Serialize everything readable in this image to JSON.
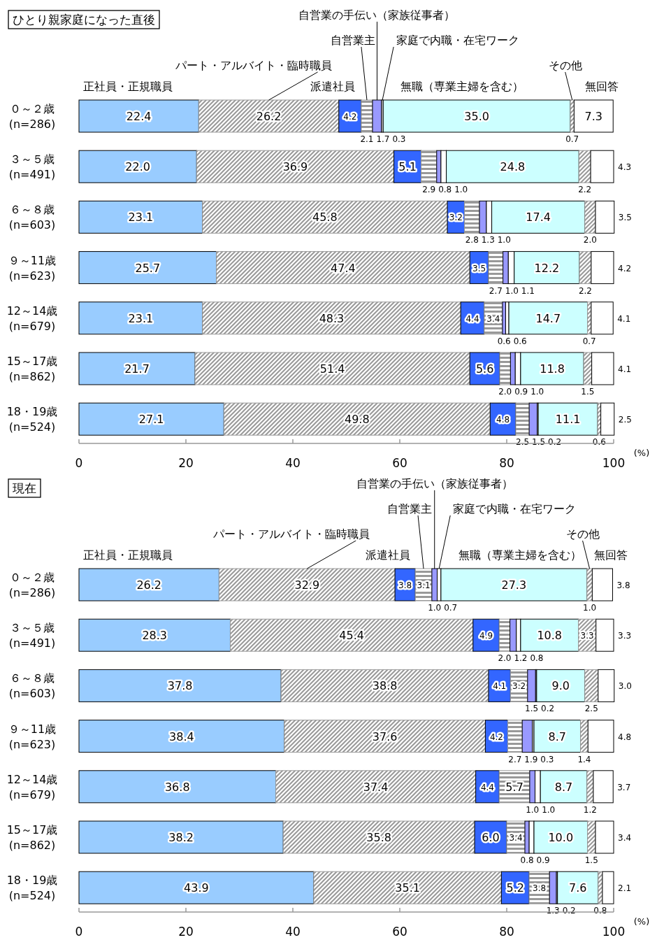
{
  "chart_data": [
    {
      "type": "bar",
      "orientation": "horizontal",
      "stacked": true,
      "title": "ひとり親家庭になった直後",
      "xlim": [
        0,
        100
      ],
      "xticks": [
        0,
        20,
        40,
        60,
        80,
        100
      ],
      "annotations": [
        "(%)"
      ],
      "categories": [
        "０～２歳\n(n=286)",
        "３～５歳\n(n=491)",
        "６～８歳\n(n=603)",
        "９～11歳\n(n=623)",
        "12～14歳\n(n=679)",
        "15～17歳\n(n=862)",
        "18・19歳\n(n=524)"
      ],
      "series": [
        {
          "name": "正社員・正規職員",
          "color": "#99ccff",
          "values": [
            22.4,
            22.0,
            23.1,
            25.7,
            23.1,
            21.7,
            27.1
          ],
          "value_labels": [
            "22.4",
            "22.0",
            "23.1",
            "25.7",
            "23.1",
            "21.7",
            "27.1"
          ]
        },
        {
          "name": "パート・アルバイト・臨時職員",
          "color": "#999999",
          "values": [
            26.2,
            36.9,
            45.8,
            47.4,
            48.3,
            51.4,
            49.8
          ],
          "value_labels": [
            "26.2",
            "36.9",
            "45.8",
            "47.4",
            "48.3",
            "51.4",
            "49.8"
          ]
        },
        {
          "name": "派遣社員",
          "color": "#3366ff",
          "values": [
            4.2,
            5.1,
            3.2,
            3.5,
            4.4,
            5.6,
            4.8
          ],
          "value_labels": [
            "4.2",
            "5.1",
            "3.2",
            "3.5",
            "4.4",
            "5.6",
            "4.8"
          ]
        },
        {
          "name": "自営業主",
          "color": "#999999",
          "values": [
            2.1,
            2.9,
            2.8,
            2.7,
            3.4,
            2.0,
            2.5
          ],
          "value_labels": [
            "2.1",
            "2.9",
            "2.8",
            "2.7",
            "3.4",
            "2.0",
            "2.5"
          ]
        },
        {
          "name": "自営業の手伝い（家族従事者）",
          "color": "#9999ff",
          "values": [
            1.7,
            0.8,
            1.3,
            1.0,
            0.6,
            0.9,
            1.5
          ],
          "value_labels": [
            "1.7",
            "0.8",
            "1.3",
            "1.0",
            "0.6",
            "0.9",
            "1.5"
          ]
        },
        {
          "name": "家庭で内職・在宅ワーク",
          "color": "#ffffff",
          "values": [
            0.3,
            1.0,
            1.0,
            1.1,
            0.6,
            1.0,
            0.2
          ],
          "value_labels": [
            "0.3",
            "1.0",
            "1.0",
            "1.1",
            "0.6",
            "1.0",
            "0.2"
          ]
        },
        {
          "name": "無職（専業主婦を含む）",
          "color": "#ccffff",
          "values": [
            35.0,
            24.8,
            17.4,
            12.2,
            14.7,
            11.8,
            11.1
          ],
          "value_labels": [
            "35.0",
            "24.8",
            "17.4",
            "12.2",
            "14.7",
            "11.8",
            "11.1"
          ]
        },
        {
          "name": "その他",
          "color": "#999999",
          "values": [
            0.7,
            2.2,
            2.0,
            2.2,
            0.7,
            1.5,
            0.6
          ],
          "value_labels": [
            "0.7",
            "2.2",
            "2.0",
            "2.2",
            "0.7",
            "1.5",
            "0.6"
          ]
        },
        {
          "name": "無回答",
          "color": "#ffffff",
          "values": [
            7.3,
            4.3,
            3.5,
            4.2,
            4.1,
            4.1,
            2.5
          ],
          "value_labels": [
            "7.3",
            "4.3",
            "3.5",
            "4.2",
            "4.1",
            "4.1",
            "2.5"
          ]
        }
      ]
    },
    {
      "type": "bar",
      "orientation": "horizontal",
      "stacked": true,
      "title": "現在",
      "xlim": [
        0,
        100
      ],
      "xticks": [
        0,
        20,
        40,
        60,
        80,
        100
      ],
      "annotations": [
        "(%)"
      ],
      "categories": [
        "０～２歳\n(n=286)",
        "３～５歳\n(n=491)",
        "６～８歳\n(n=603)",
        "９～11歳\n(n=623)",
        "12～14歳\n(n=679)",
        "15～17歳\n(n=862)",
        "18・19歳\n(n=524)"
      ],
      "series": [
        {
          "name": "正社員・正規職員",
          "color": "#99ccff",
          "values": [
            26.2,
            28.3,
            37.8,
            38.4,
            36.8,
            38.2,
            43.9
          ],
          "value_labels": [
            "26.2",
            "28.3",
            "37.8",
            "38.4",
            "36.8",
            "38.2",
            "43.9"
          ]
        },
        {
          "name": "パート・アルバイト・臨時職員",
          "color": "#999999",
          "values": [
            32.9,
            45.4,
            38.8,
            37.6,
            37.4,
            35.8,
            35.1
          ],
          "value_labels": [
            "32.9",
            "45.4",
            "38.8",
            "37.6",
            "37.4",
            "35.8",
            "35.1"
          ]
        },
        {
          "name": "派遣社員",
          "color": "#3366ff",
          "values": [
            3.8,
            4.9,
            4.1,
            4.2,
            4.4,
            6.0,
            5.2
          ],
          "value_labels": [
            "3.8",
            "4.9",
            "4.1",
            "4.2",
            "4.4",
            "6.0",
            "5.2"
          ]
        },
        {
          "name": "自営業主",
          "color": "#999999",
          "values": [
            3.1,
            2.0,
            3.2,
            2.7,
            5.7,
            3.4,
            3.8
          ],
          "value_labels": [
            "3.1",
            "2.0",
            "3.2",
            "2.7",
            "5.7",
            "3.4",
            "3.8"
          ]
        },
        {
          "name": "自営業の手伝い（家族従事者）",
          "color": "#9999ff",
          "values": [
            1.0,
            1.2,
            1.5,
            1.9,
            1.0,
            0.8,
            1.3
          ],
          "value_labels": [
            "1.0",
            "1.2",
            "1.5",
            "1.9",
            "1.0",
            "0.8",
            "1.3"
          ]
        },
        {
          "name": "家庭で内職・在宅ワーク",
          "color": "#ffffff",
          "values": [
            0.7,
            0.8,
            0.2,
            0.3,
            1.0,
            0.9,
            0.2
          ],
          "value_labels": [
            "0.7",
            "0.8",
            "0.2",
            "0.3",
            "1.0",
            "0.9",
            "0.2"
          ]
        },
        {
          "name": "無職（専業主婦を含む）",
          "color": "#ccffff",
          "values": [
            27.3,
            10.8,
            9.0,
            8.7,
            8.7,
            10.0,
            7.6
          ],
          "value_labels": [
            "27.3",
            "10.8",
            "9.0",
            "8.7",
            "8.7",
            "10.0",
            "7.6"
          ]
        },
        {
          "name": "その他",
          "color": "#999999",
          "values": [
            1.0,
            3.3,
            2.5,
            1.4,
            1.2,
            1.5,
            0.8
          ],
          "value_labels": [
            "1.0",
            "3.3",
            "2.5",
            "1.4",
            "1.2",
            "1.5",
            "0.8"
          ]
        },
        {
          "name": "無回答",
          "color": "#ffffff",
          "values": [
            3.8,
            3.3,
            3.0,
            4.8,
            3.7,
            3.4,
            2.1
          ],
          "value_labels": [
            "3.8",
            "3.3",
            "3.0",
            "4.8",
            "3.7",
            "3.4",
            "2.1"
          ]
        }
      ]
    }
  ]
}
